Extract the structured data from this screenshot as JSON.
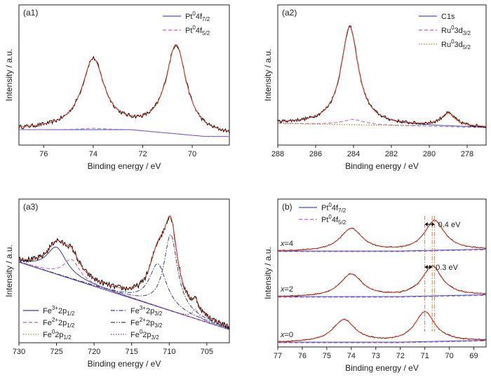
{
  "colors": {
    "experimental": "#000000",
    "fit": "#e8432a",
    "blue": "#3e55b4",
    "pink": "#c45cc4",
    "olive": "#9a8a2a",
    "navy": "#3a3f8a",
    "purple": "#7a3fa0",
    "marker": "#f07a2a"
  },
  "chart_data": [
    {
      "id": "a1",
      "type": "line",
      "panel_label": "(a1)",
      "xlabel": "Binding energy / eV",
      "ylabel": "Intensity / a.u.",
      "xlim": [
        77,
        68.5
      ],
      "xticks": [
        76,
        74,
        72,
        70
      ],
      "legend": [
        {
          "pre": "Pt",
          "sup": "0",
          "mid": "4f",
          "sub": "7/2",
          "style": "solid",
          "color": "blue"
        },
        {
          "pre": "Pt",
          "sup": "0",
          "mid": "4f",
          "sub": "5/2",
          "style": "dashed",
          "color": "pink"
        }
      ],
      "peaks": [
        {
          "x": 74.0,
          "height": 0.62,
          "width": 0.55
        },
        {
          "x": 70.65,
          "height": 0.78,
          "width": 0.5
        }
      ]
    },
    {
      "id": "a2",
      "type": "line",
      "panel_label": "(a2)",
      "xlabel": "Binding energy / eV",
      "ylabel": "Intensity / a.u.",
      "xlim": [
        288,
        277
      ],
      "xticks": [
        288,
        286,
        284,
        282,
        280,
        278
      ],
      "legend": [
        {
          "pre": "C1s",
          "sup": "",
          "mid": "",
          "sub": "",
          "style": "solid",
          "color": "blue"
        },
        {
          "pre": "Ru",
          "sup": "0",
          "mid": "3d",
          "sub": "3/2",
          "style": "dashed",
          "color": "pink"
        },
        {
          "pre": "Ru",
          "sup": "0",
          "mid": "3d",
          "sub": "5/2",
          "style": "dotted",
          "color": "olive"
        }
      ],
      "peaks": [
        {
          "x": 284.2,
          "height": 0.92,
          "width": 0.55
        },
        {
          "x": 279.0,
          "height": 0.12,
          "width": 0.45
        }
      ]
    },
    {
      "id": "a3",
      "type": "line",
      "panel_label": "(a3)",
      "xlabel": "Binding energy / eV",
      "ylabel": "Intensity / a.u.",
      "xlim": [
        730,
        702
      ],
      "xticks": [
        730,
        725,
        720,
        715,
        710,
        705
      ],
      "legend": [
        {
          "pre": "Fe",
          "sup": "3+",
          "mid": "2p",
          "sub": "1/2",
          "style": "solid",
          "color": "navy"
        },
        {
          "pre": "Fe",
          "sup": "3+",
          "mid": "2p",
          "sub": "3/2",
          "style": "dashdot",
          "color": "navy"
        },
        {
          "pre": "Fe",
          "sup": "2+",
          "mid": "2p",
          "sub": "1/2",
          "style": "dashed",
          "color": "pink"
        },
        {
          "pre": "Fe",
          "sup": "2+",
          "mid": "2p",
          "sub": "3/2",
          "style": "dashdotdot",
          "color": "navy"
        },
        {
          "pre": "Fe",
          "sup": "0",
          "mid": "2p",
          "sub": "1/2",
          "style": "dotted",
          "color": "olive"
        },
        {
          "pre": "Fe",
          "sup": "0",
          "mid": "2p",
          "sub": "3/2",
          "style": "dotted",
          "color": "purple"
        }
      ],
      "peaks": [
        {
          "x": 725.0,
          "height": 0.22,
          "width": 1.6
        },
        {
          "x": 723.0,
          "height": 0.16,
          "width": 1.3
        },
        {
          "x": 711.5,
          "height": 0.35,
          "width": 1.4
        },
        {
          "x": 709.8,
          "height": 0.62,
          "width": 1.1
        },
        {
          "x": 706.5,
          "height": 0.08,
          "width": 0.5
        }
      ]
    },
    {
      "id": "b",
      "type": "line",
      "panel_label": "(b)",
      "xlabel": "Binding energy / eV",
      "ylabel": "Intensity / a.u.",
      "xlim": [
        77,
        68.5
      ],
      "xticks": [
        77,
        76,
        75,
        74,
        73,
        72,
        71,
        70,
        69
      ],
      "legend": [
        {
          "pre": "Pt",
          "sup": "0",
          "mid": "4f",
          "sub": "7/2",
          "style": "solid",
          "color": "blue"
        },
        {
          "pre": "Pt",
          "sup": "0",
          "mid": "4f",
          "sub": "5/2",
          "style": "dashed",
          "color": "pink"
        }
      ],
      "series": [
        {
          "name": "x=4",
          "label_var": "x",
          "label_val": "=4",
          "peak1": 74.0,
          "peak2": 70.6
        },
        {
          "name": "x=2",
          "label_var": "x",
          "label_val": "=2",
          "peak1": 74.0,
          "peak2": 70.7
        },
        {
          "name": "x=0",
          "label_var": "x",
          "label_val": "=0",
          "peak1": 74.3,
          "peak2": 71.0
        }
      ],
      "annotations": [
        {
          "text": "0.4 eV",
          "x_from": 71.0,
          "x_to": 70.6
        },
        {
          "text": "0.3 eV",
          "x_from": 71.0,
          "x_to": 70.7
        }
      ],
      "reference_lines": [
        71.0,
        70.7,
        70.6
      ]
    }
  ]
}
